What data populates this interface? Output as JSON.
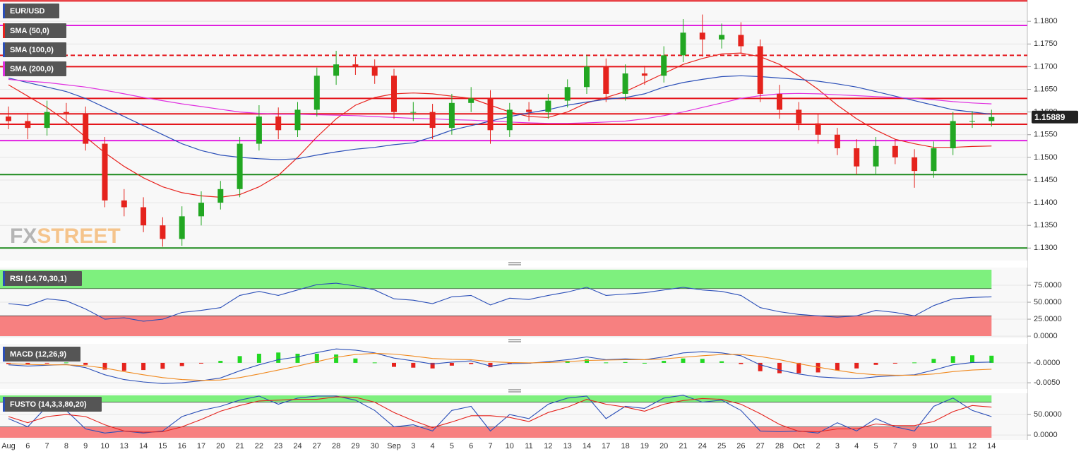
{
  "chart_data": [
    {
      "type": "candlestick",
      "name": "EUR/USD",
      "categories": [
        "Aug",
        "6",
        "7",
        "8",
        "9",
        "10",
        "13",
        "14",
        "15",
        "16",
        "17",
        "20",
        "21",
        "22",
        "23",
        "24",
        "27",
        "28",
        "29",
        "30",
        "Sep",
        "3",
        "4",
        "5",
        "6",
        "7",
        "10",
        "11",
        "12",
        "13",
        "14",
        "17",
        "18",
        "19",
        "20",
        "21",
        "24",
        "25",
        "26",
        "27",
        "28",
        "Oct",
        "2",
        "3",
        "4",
        "5",
        "7",
        "9",
        "10",
        "11",
        "12",
        "14"
      ],
      "open": [
        1.159,
        1.158,
        1.1565,
        1.16,
        1.1595,
        1.153,
        1.1405,
        1.139,
        1.135,
        1.132,
        1.137,
        1.14,
        1.143,
        1.153,
        1.159,
        1.156,
        1.1605,
        1.168,
        1.1705,
        1.17,
        1.168,
        1.16,
        1.16,
        1.1565,
        1.162,
        1.163,
        1.156,
        1.1605,
        1.16,
        1.1625,
        1.1655,
        1.17,
        1.164,
        1.1685,
        1.168,
        1.1725,
        1.1775,
        1.176,
        1.177,
        1.1745,
        1.164,
        1.1605,
        1.1575,
        1.155,
        1.152,
        1.148,
        1.1525,
        1.15,
        1.147,
        1.152,
        1.158,
        1.158
      ],
      "high": [
        1.1612,
        1.1598,
        1.1625,
        1.162,
        1.1612,
        1.1545,
        1.143,
        1.1412,
        1.1368,
        1.1392,
        1.1425,
        1.1448,
        1.1545,
        1.1615,
        1.161,
        1.1622,
        1.1698,
        1.1735,
        1.1722,
        1.1716,
        1.1695,
        1.1622,
        1.1618,
        1.164,
        1.1655,
        1.1648,
        1.162,
        1.1622,
        1.164,
        1.1672,
        1.1725,
        1.1718,
        1.1705,
        1.1702,
        1.1745,
        1.1805,
        1.1815,
        1.1795,
        1.1798,
        1.176,
        1.166,
        1.1622,
        1.1595,
        1.1565,
        1.154,
        1.1545,
        1.154,
        1.1518,
        1.1535,
        1.16,
        1.1602,
        1.1605
      ],
      "low": [
        1.1562,
        1.154,
        1.1548,
        1.1575,
        1.1515,
        1.139,
        1.137,
        1.1335,
        1.1303,
        1.1305,
        1.135,
        1.1385,
        1.1412,
        1.1515,
        1.154,
        1.1545,
        1.159,
        1.166,
        1.1682,
        1.1662,
        1.1585,
        1.158,
        1.154,
        1.155,
        1.16,
        1.153,
        1.1545,
        1.158,
        1.1585,
        1.161,
        1.164,
        1.1622,
        1.1625,
        1.166,
        1.1665,
        1.171,
        1.1722,
        1.174,
        1.1728,
        1.1622,
        1.1585,
        1.156,
        1.153,
        1.1505,
        1.1462,
        1.1462,
        1.1485,
        1.1433,
        1.1455,
        1.1505,
        1.1565,
        1.1568
      ],
      "close": [
        1.158,
        1.1565,
        1.16,
        1.1595,
        1.153,
        1.1405,
        1.139,
        1.135,
        1.132,
        1.137,
        1.14,
        1.143,
        1.153,
        1.159,
        1.156,
        1.1605,
        1.168,
        1.1705,
        1.17,
        1.168,
        1.16,
        1.16,
        1.1565,
        1.162,
        1.163,
        1.156,
        1.1605,
        1.16,
        1.1625,
        1.1655,
        1.17,
        1.164,
        1.1685,
        1.168,
        1.1725,
        1.1775,
        1.176,
        1.177,
        1.1745,
        1.164,
        1.1605,
        1.1575,
        1.155,
        1.152,
        1.148,
        1.1525,
        1.15,
        1.147,
        1.152,
        1.158,
        1.158,
        1.15889
      ],
      "up_color": "#22a722",
      "down_color": "#e5231d",
      "overlays": [
        {
          "name": "SMA (50,0)",
          "color": "#e8231e",
          "values": [
            1.166,
            1.1635,
            1.161,
            1.158,
            1.1545,
            1.151,
            1.148,
            1.1455,
            1.1435,
            1.1422,
            1.1415,
            1.1412,
            1.1418,
            1.1435,
            1.146,
            1.15,
            1.1545,
            1.1585,
            1.1615,
            1.1632,
            1.164,
            1.1642,
            1.164,
            1.1635,
            1.163,
            1.1615,
            1.16,
            1.159,
            1.1588,
            1.16,
            1.162,
            1.1632,
            1.1645,
            1.1665,
            1.1685,
            1.1705,
            1.1718,
            1.1728,
            1.173,
            1.1722,
            1.1705,
            1.168,
            1.165,
            1.1615,
            1.1585,
            1.156,
            1.154,
            1.153,
            1.1522,
            1.1522,
            1.1524,
            1.1525
          ]
        },
        {
          "name": "SMA (100,0)",
          "color": "#2b4fb8",
          "values": [
            1.1675,
            1.1665,
            1.1655,
            1.1645,
            1.163,
            1.161,
            1.159,
            1.157,
            1.155,
            1.153,
            1.1515,
            1.1505,
            1.15,
            1.1497,
            1.1495,
            1.1497,
            1.1505,
            1.1512,
            1.1518,
            1.1522,
            1.1528,
            1.1532,
            1.1545,
            1.156,
            1.157,
            1.158,
            1.159,
            1.1598,
            1.1605,
            1.1615,
            1.1622,
            1.1628,
            1.1632,
            1.164,
            1.1655,
            1.1665,
            1.1672,
            1.1678,
            1.168,
            1.1678,
            1.1675,
            1.1672,
            1.1668,
            1.1662,
            1.1655,
            1.1645,
            1.1635,
            1.1625,
            1.1615,
            1.1605,
            1.16,
            1.1595
          ]
        },
        {
          "name": "SMA (200,0)",
          "color": "#e030e0",
          "values": [
            1.1672,
            1.1668,
            1.1665,
            1.166,
            1.1655,
            1.1648,
            1.164,
            1.1632,
            1.1625,
            1.1618,
            1.1612,
            1.1606,
            1.16,
            1.1597,
            1.1595,
            1.1595,
            1.1594,
            1.1593,
            1.1592,
            1.159,
            1.1588,
            1.1586,
            1.1585,
            1.1583,
            1.1582,
            1.158,
            1.1578,
            1.1576,
            1.1575,
            1.1575,
            1.1576,
            1.1578,
            1.158,
            1.1585,
            1.1592,
            1.16,
            1.161,
            1.162,
            1.163,
            1.1636,
            1.164,
            1.1641,
            1.164,
            1.1638,
            1.1636,
            1.1634,
            1.1632,
            1.163,
            1.1627,
            1.1623,
            1.162,
            1.1618
          ]
        }
      ],
      "levels": [
        {
          "value": 1.1845,
          "color": "#e4151b",
          "style": "solid"
        },
        {
          "value": 1.1791,
          "color": "#e020e0",
          "style": "solid"
        },
        {
          "value": 1.1725,
          "color": "#e4151b",
          "style": "dashed"
        },
        {
          "value": 1.17,
          "color": "#e4151b",
          "style": "solid"
        },
        {
          "value": 1.163,
          "color": "#e4151b",
          "style": "solid"
        },
        {
          "value": 1.1596,
          "color": "#e4151b",
          "style": "solid"
        },
        {
          "value": 1.1573,
          "color": "#e4151b",
          "style": "solid"
        },
        {
          "value": 1.1537,
          "color": "#e020e0",
          "style": "solid"
        },
        {
          "value": 1.1462,
          "color": "#1d8a1d",
          "style": "solid"
        },
        {
          "value": 1.13,
          "color": "#1d8a1d",
          "style": "solid"
        }
      ],
      "last_price": 1.15889,
      "watermark": [
        "FX",
        "STREET"
      ],
      "ylim": [
        1.1274,
        1.1847
      ],
      "yticks": [
        {
          "value": 1.13,
          "label": "1.1300"
        },
        {
          "value": 1.135,
          "label": "1.1350"
        },
        {
          "value": 1.14,
          "label": "1.1400"
        },
        {
          "value": 1.145,
          "label": "1.1450"
        },
        {
          "value": 1.15,
          "label": "1.1500"
        },
        {
          "value": 1.155,
          "label": "1.1550"
        },
        {
          "value": 1.16,
          "label": "1.1600"
        },
        {
          "value": 1.165,
          "label": "1.1650"
        },
        {
          "value": 1.17,
          "label": "1.1700"
        },
        {
          "value": 1.175,
          "label": "1.1750"
        },
        {
          "value": 1.18,
          "label": "1.1800"
        }
      ]
    },
    {
      "type": "line",
      "title": "RSI (14,70,30,1)",
      "bands": [
        30,
        70
      ],
      "band_colors": [
        "#f78080",
        "#7ef07e"
      ],
      "series": [
        {
          "color": "#2b4fb8",
          "values": [
            48,
            45,
            55,
            52,
            40,
            25,
            27,
            22,
            25,
            35,
            38,
            42,
            60,
            66,
            60,
            68,
            76,
            78,
            74,
            68,
            55,
            53,
            48,
            58,
            60,
            46,
            56,
            54,
            60,
            65,
            72,
            60,
            62,
            64,
            68,
            72,
            68,
            66,
            60,
            42,
            36,
            32,
            30,
            28,
            30,
            38,
            35,
            30,
            45,
            55,
            57,
            58
          ]
        }
      ],
      "ylim": [
        -2,
        100
      ],
      "yticks": [
        {
          "value": 0,
          "label": "0.0000"
        },
        {
          "value": 25,
          "label": "25.0000"
        },
        {
          "value": 50,
          "label": "50.0000"
        },
        {
          "value": 75,
          "label": "75.0000"
        }
      ]
    },
    {
      "type": "macd",
      "title": "MACD (12,26,9)",
      "hist_colors": [
        "#22d822",
        "#e5231d"
      ],
      "series": [
        {
          "color": "#2b4fb8",
          "values": [
            -0.0005,
            -0.0008,
            -0.0006,
            -0.0004,
            -0.0012,
            -0.003,
            -0.0042,
            -0.0048,
            -0.0052,
            -0.005,
            -0.0045,
            -0.0038,
            -0.002,
            -0.0005,
            0.0008,
            0.0015,
            0.0026,
            0.0035,
            0.0032,
            0.0025,
            0.0012,
            0.0005,
            -0.0003,
            0.0002,
            0.0005,
            -0.0008,
            -0.0002,
            -0.0001,
            0.0003,
            0.0008,
            0.0015,
            0.0008,
            0.001,
            0.0008,
            0.0015,
            0.0025,
            0.0028,
            0.0025,
            0.0018,
            -0.0005,
            -0.0018,
            -0.0028,
            -0.0035,
            -0.0038,
            -0.004,
            -0.0035,
            -0.0032,
            -0.003,
            -0.0018,
            -0.0005,
            0.0001,
            0.0002
          ]
        },
        {
          "color": "#f0891e",
          "values": [
            -0.0002,
            -0.0004,
            -0.0005,
            -0.0005,
            -0.0007,
            -0.0013,
            -0.0022,
            -0.003,
            -0.0037,
            -0.0042,
            -0.0044,
            -0.0043,
            -0.0037,
            -0.0028,
            -0.0018,
            -0.0008,
            0.0003,
            0.0014,
            0.0021,
            0.0024,
            0.0022,
            0.0017,
            0.0011,
            0.0009,
            0.0008,
            0.0003,
            0.0001,
            0.0,
            0.0001,
            0.0003,
            0.0006,
            0.0007,
            0.0008,
            0.0008,
            0.001,
            0.0014,
            0.0018,
            0.0021,
            0.0021,
            0.0016,
            0.0008,
            -0.0002,
            -0.0011,
            -0.0019,
            -0.0026,
            -0.003,
            -0.0031,
            -0.0031,
            -0.0028,
            -0.0022,
            -0.0018,
            -0.0016
          ]
        }
      ],
      "histogram": [
        -0.0003,
        -0.0004,
        -0.0001,
        0.0001,
        -0.0005,
        -0.0017,
        -0.002,
        -0.0018,
        -0.0015,
        -0.0008,
        -0.0001,
        0.0005,
        0.0017,
        0.0023,
        0.0026,
        0.0023,
        0.0023,
        0.0021,
        0.0011,
        0.0001,
        -0.001,
        -0.0012,
        -0.0014,
        -0.0007,
        -0.0003,
        -0.0011,
        -0.0003,
        -0.0001,
        0.0002,
        0.0005,
        0.0009,
        0.0001,
        0.0002,
        0.0,
        0.0005,
        0.0011,
        0.001,
        0.0004,
        -0.0003,
        -0.0021,
        -0.0026,
        -0.0026,
        -0.0024,
        -0.0019,
        -0.0014,
        -0.0005,
        -0.0001,
        0.0001,
        0.001,
        0.0017,
        0.0019,
        0.0018
      ],
      "ylim": [
        -0.0064,
        0.0046
      ],
      "yticks": [
        {
          "value": -0.005,
          "label": "-0.0050"
        },
        {
          "value": 0,
          "label": "-0.0000"
        }
      ]
    },
    {
      "type": "line",
      "title": "FUSTO (14,3,3,80,20)",
      "bands": [
        20,
        80
      ],
      "band_colors": [
        "#f78080",
        "#7ef07e"
      ],
      "series": [
        {
          "color": "#2b4fb8",
          "values": [
            40,
            20,
            70,
            60,
            15,
            5,
            10,
            5,
            10,
            45,
            60,
            70,
            85,
            95,
            75,
            90,
            95,
            95,
            85,
            60,
            20,
            25,
            10,
            60,
            70,
            10,
            50,
            40,
            75,
            90,
            95,
            40,
            70,
            65,
            90,
            97,
            80,
            85,
            60,
            10,
            8,
            10,
            5,
            30,
            10,
            40,
            20,
            10,
            70,
            90,
            60,
            45
          ]
        },
        {
          "color": "#e5231d",
          "values": [
            45,
            30,
            45,
            50,
            45,
            25,
            10,
            7,
            8,
            20,
            38,
            58,
            72,
            83,
            85,
            87,
            87,
            93,
            92,
            80,
            55,
            35,
            18,
            32,
            47,
            47,
            43,
            33,
            55,
            68,
            87,
            75,
            68,
            58,
            75,
            84,
            89,
            87,
            75,
            52,
            26,
            9,
            8,
            15,
            15,
            27,
            23,
            23,
            33,
            57,
            72,
            68
          ]
        }
      ],
      "ylim": [
        -10,
        100
      ],
      "yticks": [
        {
          "value": 0,
          "label": "0.0000"
        },
        {
          "value": 50,
          "label": "50.0000"
        }
      ]
    }
  ]
}
